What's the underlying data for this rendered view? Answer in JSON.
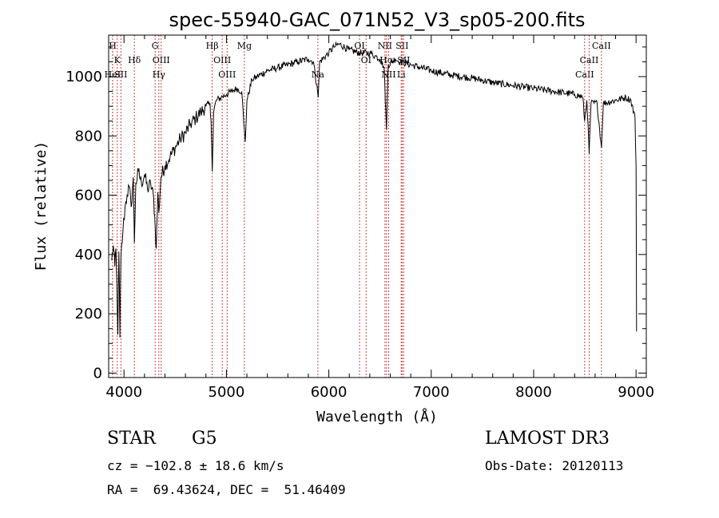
{
  "chart_data": {
    "type": "line",
    "title": "spec-55940-GAC_071N52_V3_sp05-200.fits",
    "xlabel": "Wavelength (Å)",
    "ylabel": "Flux (relative)",
    "xlim": [
      3850,
      9100
    ],
    "ylim": [
      -15,
      1140
    ],
    "x_ticks": [
      4000,
      5000,
      6000,
      7000,
      8000,
      9000
    ],
    "y_ticks": [
      0,
      200,
      400,
      600,
      800,
      1000
    ],
    "grid": false,
    "series": [
      {
        "name": "flux",
        "points": [
          [
            3880,
            380
          ],
          [
            3895,
            430
          ],
          [
            3910,
            360
          ],
          [
            3920,
            420
          ],
          [
            3930,
            300
          ],
          [
            3940,
            130
          ],
          [
            3950,
            410
          ],
          [
            3960,
            120
          ],
          [
            3970,
            390
          ],
          [
            3990,
            480
          ],
          [
            4010,
            560
          ],
          [
            4030,
            600
          ],
          [
            4050,
            630
          ],
          [
            4070,
            560
          ],
          [
            4090,
            660
          ],
          [
            4101,
            440
          ],
          [
            4115,
            640
          ],
          [
            4140,
            680
          ],
          [
            4170,
            640
          ],
          [
            4200,
            670
          ],
          [
            4230,
            620
          ],
          [
            4260,
            640
          ],
          [
            4290,
            590
          ],
          [
            4305,
            490
          ],
          [
            4315,
            420
          ],
          [
            4330,
            610
          ],
          [
            4340,
            540
          ],
          [
            4360,
            660
          ],
          [
            4400,
            700
          ],
          [
            4450,
            730
          ],
          [
            4500,
            760
          ],
          [
            4550,
            790
          ],
          [
            4600,
            810
          ],
          [
            4650,
            840
          ],
          [
            4700,
            860
          ],
          [
            4750,
            880
          ],
          [
            4800,
            900
          ],
          [
            4840,
            910
          ],
          [
            4850,
            850
          ],
          [
            4862,
            680
          ],
          [
            4875,
            880
          ],
          [
            4900,
            920
          ],
          [
            4950,
            930
          ],
          [
            5000,
            940
          ],
          [
            5050,
            950
          ],
          [
            5100,
            960
          ],
          [
            5150,
            950
          ],
          [
            5170,
            840
          ],
          [
            5184,
            780
          ],
          [
            5200,
            920
          ],
          [
            5250,
            990
          ],
          [
            5300,
            1000
          ],
          [
            5400,
            1020
          ],
          [
            5500,
            1030
          ],
          [
            5600,
            1040
          ],
          [
            5700,
            1050
          ],
          [
            5800,
            1060
          ],
          [
            5850,
            1050
          ],
          [
            5890,
            950
          ],
          [
            5896,
            930
          ],
          [
            5910,
            1050
          ],
          [
            6000,
            1080
          ],
          [
            6050,
            1100
          ],
          [
            6100,
            1110
          ],
          [
            6200,
            1090
          ],
          [
            6300,
            1080
          ],
          [
            6400,
            1080
          ],
          [
            6450,
            1070
          ],
          [
            6500,
            1060
          ],
          [
            6540,
            1030
          ],
          [
            6563,
            820
          ],
          [
            6580,
            1040
          ],
          [
            6650,
            1060
          ],
          [
            6700,
            1050
          ],
          [
            6800,
            1040
          ],
          [
            6900,
            1030
          ],
          [
            7000,
            1020
          ],
          [
            7200,
            1005
          ],
          [
            7400,
            995
          ],
          [
            7600,
            980
          ],
          [
            7800,
            970
          ],
          [
            8000,
            960
          ],
          [
            8200,
            950
          ],
          [
            8400,
            940
          ],
          [
            8480,
            930
          ],
          [
            8498,
            850
          ],
          [
            8520,
            920
          ],
          [
            8542,
            740
          ],
          [
            8560,
            910
          ],
          [
            8620,
            910
          ],
          [
            8662,
            760
          ],
          [
            8680,
            910
          ],
          [
            8800,
            920
          ],
          [
            8900,
            930
          ],
          [
            8950,
            920
          ],
          [
            8990,
            860
          ],
          [
            9000,
            700
          ],
          [
            9005,
            140
          ]
        ]
      }
    ],
    "spectral_lines": [
      {
        "label": "H",
        "x": 3889,
        "row": 0
      },
      {
        "label": "K",
        "x": 3934,
        "row": 1
      },
      {
        "label": "HeI",
        "x": 3888,
        "row": 2
      },
      {
        "label": "SII",
        "x": 3970,
        "row": 2
      },
      {
        "label": "Hδ",
        "x": 4101,
        "row": 1
      },
      {
        "label": "G",
        "x": 4304,
        "row": 0
      },
      {
        "label": "OIII",
        "x": 4363,
        "row": 1
      },
      {
        "label": "Hγ",
        "x": 4340,
        "row": 2
      },
      {
        "label": "Hβ",
        "x": 4861,
        "row": 0
      },
      {
        "label": "OIII",
        "x": 4959,
        "row": 1
      },
      {
        "label": "OIII",
        "x": 5007,
        "row": 2
      },
      {
        "label": "Mg",
        "x": 5175,
        "row": 0
      },
      {
        "label": "Na",
        "x": 5893,
        "row": 2
      },
      {
        "label": "OI",
        "x": 6300,
        "row": 0
      },
      {
        "label": "OI",
        "x": 6364,
        "row": 1
      },
      {
        "label": "NII",
        "x": 6548,
        "row": 0
      },
      {
        "label": "Hα",
        "x": 6563,
        "row": 1
      },
      {
        "label": "NII",
        "x": 6584,
        "row": 2
      },
      {
        "label": "SII",
        "x": 6716,
        "row": 0
      },
      {
        "label": "SII",
        "x": 6731,
        "row": 1
      },
      {
        "label": "Li",
        "x": 6707,
        "row": 2
      },
      {
        "label": "CaII",
        "x": 8498,
        "row": 2
      },
      {
        "label": "CaII",
        "x": 8542,
        "row": 1
      },
      {
        "label": "CaII",
        "x": 8662,
        "row": 0
      }
    ]
  },
  "info": {
    "object_class": "STAR",
    "subclass": "G5",
    "survey": "LAMOST DR3",
    "cz": "cz = −102.8 ± 18.6 km/s",
    "obs_date": "Obs-Date: 20120113",
    "coords": "RA =  69.43624, DEC =  51.46409"
  }
}
